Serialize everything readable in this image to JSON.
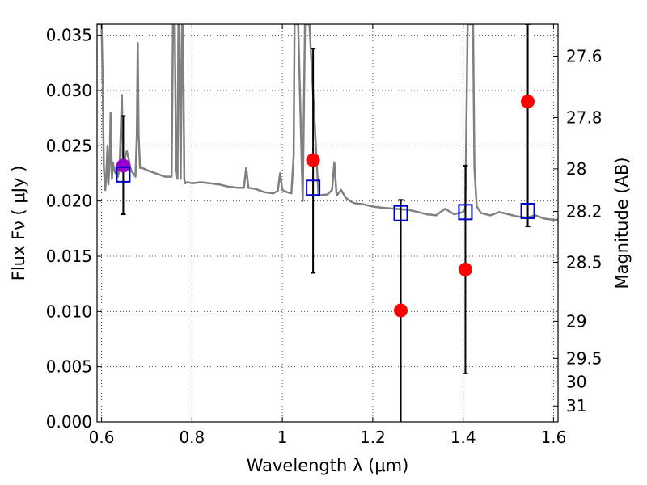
{
  "chart_data": {
    "type": "scatter",
    "xlabel": "Wavelength  λ (μm)",
    "ylabel": "Flux  Fν  ( μJy )",
    "ylabel_right": "Magnitude (AB)",
    "xlim": [
      0.59,
      1.61
    ],
    "ylim": [
      0.0,
      0.036
    ],
    "grid": true,
    "x_ticks": [
      0.6,
      0.8,
      1.0,
      1.2,
      1.4,
      1.6
    ],
    "x_tick_labels": [
      "0.6",
      "0.8",
      "1",
      "1.2",
      "1.4",
      "1.6"
    ],
    "y_ticks": [
      0.0,
      0.005,
      0.01,
      0.015,
      0.02,
      0.025,
      0.03,
      0.035
    ],
    "y_tick_labels": [
      "0.000",
      "0.005",
      "0.010",
      "0.015",
      "0.020",
      "0.025",
      "0.030",
      "0.035"
    ],
    "mag_ticks": [
      27.6,
      27.8,
      28,
      28.2,
      28.5,
      29,
      29.5,
      30,
      31
    ],
    "mag_tick_labels": [
      "27.6",
      "27.8",
      "28",
      "28.2",
      "28.5",
      "29",
      "29.5",
      "30",
      "31"
    ],
    "mag_zero_point_uJy": 3631000000,
    "colors": {
      "template": "#808080",
      "observed": "#ff0000",
      "observed_optical": "#9900cc",
      "model": "#0000cc",
      "errorbar": "#000000",
      "grid": "#555555"
    },
    "series": [
      {
        "name": "template-spectrum",
        "type": "line",
        "x": [
          0.59,
          0.6,
          0.602,
          0.605,
          0.608,
          0.61,
          0.613,
          0.615,
          0.618,
          0.62,
          0.623,
          0.625,
          0.628,
          0.631,
          0.633,
          0.636,
          0.64,
          0.643,
          0.645,
          0.647,
          0.65,
          0.653,
          0.656,
          0.66,
          0.665,
          0.67,
          0.675,
          0.678,
          0.68,
          0.682,
          0.685,
          0.69,
          0.7,
          0.72,
          0.74,
          0.755,
          0.758,
          0.762,
          0.765,
          0.768,
          0.77,
          0.772,
          0.775,
          0.778,
          0.78,
          0.783,
          0.785,
          0.79,
          0.8,
          0.82,
          0.84,
          0.86,
          0.88,
          0.9,
          0.915,
          0.92,
          0.925,
          0.94,
          0.96,
          0.98,
          0.99,
          0.995,
          1.0,
          1.01,
          1.02,
          1.025,
          1.027,
          1.035,
          1.045,
          1.05,
          1.06,
          1.08,
          1.1,
          1.11,
          1.115,
          1.12,
          1.13,
          1.14,
          1.15,
          1.16,
          1.18,
          1.2,
          1.22,
          1.25,
          1.28,
          1.3,
          1.32,
          1.34,
          1.36,
          1.38,
          1.4,
          1.405,
          1.41,
          1.415,
          1.42,
          1.422,
          1.425,
          1.43,
          1.44,
          1.46,
          1.48,
          1.5,
          1.52,
          1.54,
          1.56,
          1.58,
          1.6,
          1.61
        ],
        "values": [
          0.036,
          0.036,
          0.032,
          0.023,
          0.021,
          0.022,
          0.025,
          0.0215,
          0.0235,
          0.028,
          0.022,
          0.0235,
          0.0228,
          0.0225,
          0.0232,
          0.0222,
          0.023,
          0.027,
          0.0296,
          0.024,
          0.0232,
          0.0242,
          0.0245,
          0.0238,
          0.0228,
          0.0225,
          0.0222,
          0.026,
          0.0343,
          0.026,
          0.023,
          0.023,
          0.0228,
          0.0225,
          0.0222,
          0.0222,
          0.036,
          0.036,
          0.023,
          0.022,
          0.036,
          0.036,
          0.022,
          0.036,
          0.036,
          0.022,
          0.0216,
          0.0217,
          0.0216,
          0.0217,
          0.0216,
          0.0215,
          0.0213,
          0.0212,
          0.0212,
          0.023,
          0.0212,
          0.0211,
          0.0208,
          0.0207,
          0.0209,
          0.0225,
          0.021,
          0.0208,
          0.0207,
          0.024,
          0.036,
          0.036,
          0.02,
          0.036,
          0.036,
          0.0205,
          0.0206,
          0.021,
          0.0235,
          0.0205,
          0.021,
          0.0203,
          0.02,
          0.0198,
          0.0197,
          0.0195,
          0.0194,
          0.0193,
          0.0192,
          0.019,
          0.0188,
          0.0187,
          0.0193,
          0.0188,
          0.019,
          0.0194,
          0.036,
          0.036,
          0.036,
          0.036,
          0.023,
          0.0195,
          0.0189,
          0.0187,
          0.019,
          0.0188,
          0.0186,
          0.0185,
          0.0187,
          0.0184,
          0.0183,
          0.0183
        ]
      },
      {
        "name": "observed-flux",
        "type": "scatter",
        "x": [
          0.648,
          1.068,
          1.262,
          1.405,
          1.543
        ],
        "values": [
          0.0232,
          0.0237,
          0.0101,
          0.0138,
          0.029
        ],
        "yerr": [
          0.0045,
          0.0101,
          0.0099,
          0.0094,
          0.0
        ]
      },
      {
        "name": "model-flux",
        "type": "scatter",
        "x": [
          0.648,
          1.068,
          1.262,
          1.405,
          1.543
        ],
        "values": [
          0.0224,
          0.0212,
          0.0189,
          0.019,
          0.0191
        ],
        "yerr_low": [
          0.0036,
          0.0077,
          0.019,
          0.0146,
          0.0014
        ],
        "yerr_high": [
          0.0053,
          0.0126,
          0.0012,
          0.0042,
          0.0169
        ]
      }
    ]
  }
}
